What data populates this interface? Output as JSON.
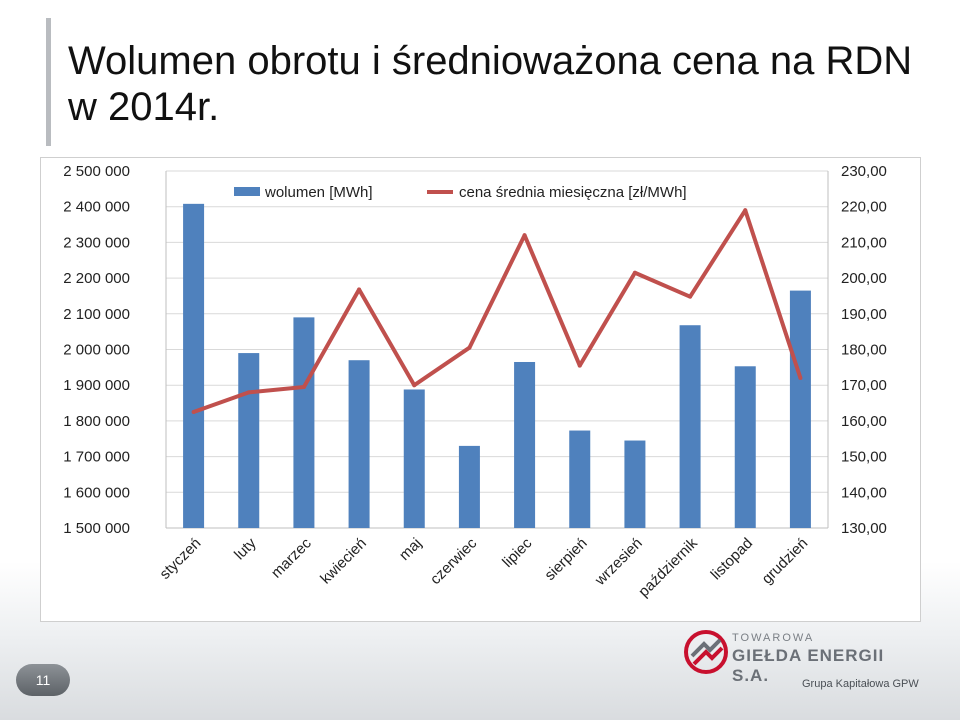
{
  "slide": {
    "title_line1": "Wolumen obrotu i średnioważona cena na RDN",
    "title_line2": "w 2014r.",
    "page_number": "11"
  },
  "logo": {
    "line1": "TOWAROWA",
    "line2": "GIEŁDA ENERGII S.A.",
    "line3": "Grupa Kapitałowa GPW",
    "colors": {
      "red": "#c8102e",
      "gray": "#6b7077"
    }
  },
  "chart_data": {
    "type": "bar",
    "categories": [
      "styczeń",
      "luty",
      "marzec",
      "kwiecień",
      "maj",
      "czerwiec",
      "lipiec",
      "sierpień",
      "wrzesień",
      "październik",
      "listopad",
      "grudzień"
    ],
    "series": [
      {
        "name": "wolumen [MWh]",
        "type": "bar",
        "axis": "left",
        "color": "#4f81bd",
        "values": [
          2408000,
          1990000,
          2090000,
          1970000,
          1888000,
          1730000,
          1965000,
          1773000,
          1745000,
          2068000,
          1953000,
          2165000
        ]
      },
      {
        "name": "cena średnia miesięczna [zł/MWh]",
        "type": "line",
        "axis": "right",
        "color": "#c0504d",
        "values": [
          162.5,
          168.0,
          169.5,
          196.8,
          170.0,
          180.5,
          212.0,
          175.5,
          201.5,
          194.8,
          219.0,
          172.0
        ]
      }
    ],
    "y_left": {
      "min": 1500000,
      "max": 2500000,
      "step": 100000,
      "tick_labels": [
        "1 500 000",
        "1 600 000",
        "1 700 000",
        "1 800 000",
        "1 900 000",
        "2 000 000",
        "2 100 000",
        "2 200 000",
        "2 300 000",
        "2 400 000",
        "2 500 000"
      ]
    },
    "y_right": {
      "min": 130,
      "max": 230,
      "step": 10,
      "tick_labels": [
        "130,00",
        "140,00",
        "150,00",
        "160,00",
        "170,00",
        "180,00",
        "190,00",
        "200,00",
        "210,00",
        "220,00",
        "230,00"
      ]
    },
    "grid": true,
    "legend": "top-center"
  }
}
